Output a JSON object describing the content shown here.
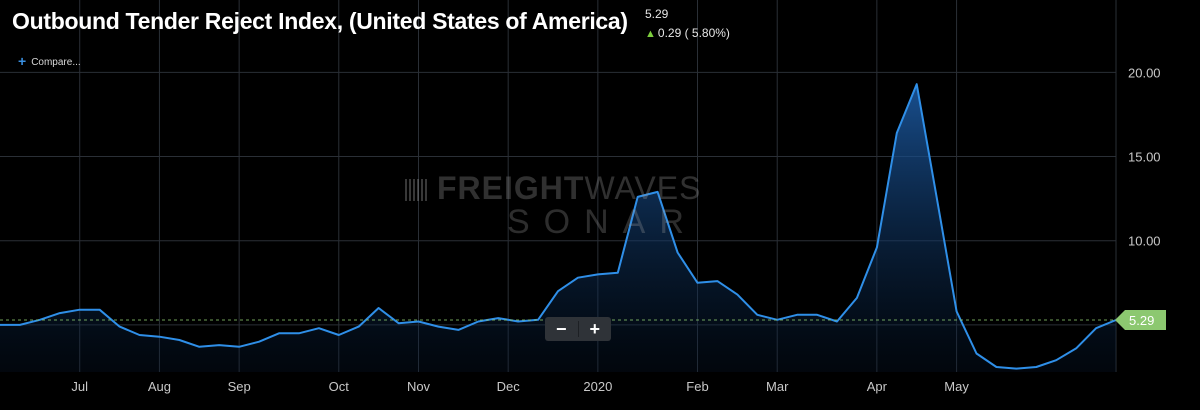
{
  "header": {
    "title": "Outbound Tender Reject Index, (United States of America)",
    "last_value": "5.29",
    "change_arrow": "▲",
    "change_text": "0.29 ( 5.80%)",
    "compare_icon": "plus-icon",
    "compare_label": "Compare..."
  },
  "zoom": {
    "minus_label": "−",
    "plus_label": "+"
  },
  "watermark": {
    "brand_bold": "FREIGHT",
    "brand_light": "WAVES",
    "sub": "SONAR"
  },
  "colors": {
    "background": "#000000",
    "line": "#2f8fe8",
    "grid": "#2a2f36",
    "last_value_badge": "#8cc870",
    "up_arrow": "#7dce3e"
  },
  "chart_data": {
    "type": "area",
    "title": "Outbound Tender Reject Index, (United States of America)",
    "last_value_label": "5.29",
    "y_ticks": [
      {
        "value": 20,
        "label": "20.00"
      },
      {
        "value": 15,
        "label": "15.00"
      },
      {
        "value": 10,
        "label": "10.00"
      }
    ],
    "ylim": [
      2.2,
      24.3
    ],
    "x_ticks": [
      {
        "index": 8,
        "label": "Jul"
      },
      {
        "index": 16,
        "label": "Aug"
      },
      {
        "index": 24,
        "label": "Sep"
      },
      {
        "index": 34,
        "label": "Oct"
      },
      {
        "index": 42,
        "label": "Nov"
      },
      {
        "index": 51,
        "label": "Dec"
      },
      {
        "index": 60,
        "label": "2020"
      },
      {
        "index": 70,
        "label": "Feb"
      },
      {
        "index": 78,
        "label": "Mar"
      },
      {
        "index": 88,
        "label": "Apr"
      },
      {
        "index": 96,
        "label": "May"
      }
    ],
    "grid": true,
    "series": [
      {
        "values": [
          5.0,
          5.0,
          5.3,
          5.7,
          5.9,
          5.9,
          4.9,
          4.4,
          4.3,
          4.1,
          3.7,
          3.8,
          3.7,
          4.0,
          4.5,
          4.5,
          4.8,
          4.4,
          4.9,
          6.0,
          5.1,
          5.2,
          4.9,
          4.7,
          5.2,
          5.4,
          5.2,
          5.3,
          7.0,
          7.8,
          8.0,
          8.1,
          12.6,
          12.9,
          9.3,
          7.5,
          7.6,
          6.8,
          5.6,
          5.3,
          5.6,
          5.6,
          5.2,
          6.6,
          9.6,
          16.4,
          19.3,
          12.6,
          5.8,
          3.3,
          2.5,
          2.4,
          2.5,
          2.9,
          3.6,
          4.8,
          5.29
        ],
        "x_index_start": 0,
        "x_index_step": 2
      }
    ]
  }
}
